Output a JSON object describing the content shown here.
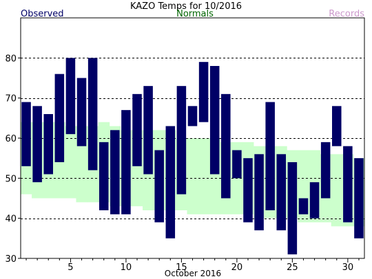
{
  "chart_data": {
    "type": "bar",
    "title": "KAZO Temps for 10/2016",
    "xlabel": "October 2016",
    "ylabel": "",
    "legend": [
      {
        "label": "Observed",
        "color": "#000066"
      },
      {
        "label": "Normals",
        "color": "#006600"
      },
      {
        "label": "Records",
        "color": "#cc99cc"
      }
    ],
    "xlim": [
      0.5,
      31.5
    ],
    "ylim": [
      30,
      90
    ],
    "x_ticks": [
      5,
      10,
      15,
      20,
      25,
      30
    ],
    "y_ticks": [
      30,
      40,
      50,
      60,
      70,
      80
    ],
    "grid": {
      "y_dashed": [
        40,
        50,
        60,
        70,
        80
      ]
    },
    "series": [
      {
        "name": "Observed",
        "color": "#000066",
        "days": [
          1,
          2,
          3,
          4,
          5,
          6,
          7,
          8,
          9,
          10,
          11,
          12,
          13,
          14,
          15,
          16,
          17,
          18,
          19,
          20,
          21,
          22,
          23,
          24,
          25,
          26,
          27,
          28,
          29,
          30,
          31
        ],
        "high": [
          69,
          68,
          66,
          76,
          80,
          75,
          80,
          59,
          62,
          67,
          71,
          73,
          57,
          63,
          73,
          68,
          79,
          78,
          71,
          57,
          55,
          56,
          69,
          56,
          54,
          45,
          49,
          59,
          68,
          58,
          55
        ],
        "low": [
          53,
          49,
          51,
          54,
          61,
          58,
          52,
          42,
          41,
          41,
          53,
          51,
          39,
          35,
          46,
          63,
          64,
          51,
          45,
          50,
          39,
          37,
          42,
          37,
          31,
          41,
          40,
          45,
          58,
          39,
          35
        ]
      },
      {
        "name": "Normals",
        "color": "#ccffcc",
        "days": [
          1,
          2,
          3,
          4,
          5,
          6,
          7,
          8,
          9,
          10,
          11,
          12,
          13,
          14,
          15,
          16,
          17,
          18,
          19,
          20,
          21,
          22,
          23,
          24,
          25,
          26,
          27,
          28,
          29,
          30,
          31
        ],
        "high": [
          64,
          64,
          64,
          64,
          63,
          63,
          63,
          64,
          63,
          62,
          62,
          62,
          62,
          62,
          60,
          60,
          60,
          60,
          59,
          59,
          59,
          58,
          58,
          58,
          57,
          57,
          57,
          56,
          56,
          56,
          55
        ],
        "low": [
          46,
          45,
          45,
          45,
          45,
          44,
          44,
          44,
          43,
          43,
          43,
          42,
          42,
          42,
          42,
          41,
          41,
          41,
          41,
          41,
          41,
          40,
          40,
          40,
          40,
          39,
          39,
          39,
          38,
          38,
          38
        ]
      }
    ]
  }
}
